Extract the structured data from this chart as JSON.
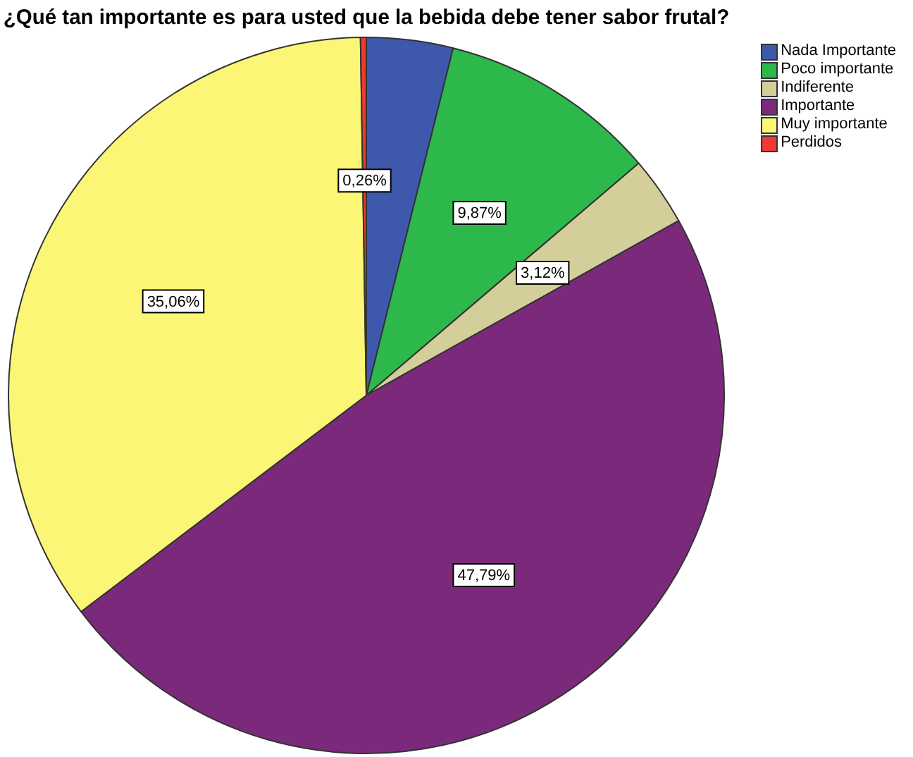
{
  "chart_data": {
    "type": "pie",
    "title": "¿Qué tan importante es para usted que la bebida debe tener sabor frutal?",
    "categories": [
      "Nada Importante",
      "Poco importante",
      "Indiferente",
      "Importante",
      "Muy importante",
      "Perdidos"
    ],
    "values": [
      3.9,
      9.87,
      3.12,
      47.79,
      35.06,
      0.26
    ],
    "colors": [
      "#3e58ac",
      "#2db84b",
      "#d4cf9a",
      "#7b2a7b",
      "#fbf675",
      "#ee3a34"
    ],
    "value_labels": [
      null,
      "9,87%",
      "3,12%",
      "47,79%",
      "35,06%",
      "0,26%"
    ],
    "legend": "top right"
  }
}
